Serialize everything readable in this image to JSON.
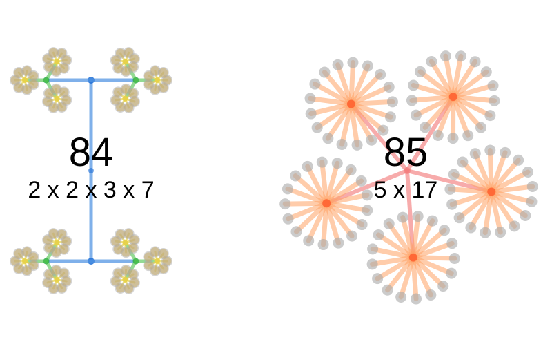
{
  "diagrams": [
    {
      "number": "84",
      "factorization": "2 x 2 x 3 x 7",
      "factors": [
        2,
        2,
        3,
        7
      ]
    },
    {
      "number": "85",
      "factorization": "5 x 17",
      "factors": [
        5,
        17
      ]
    }
  ],
  "colors": {
    "background": "#ffffff",
    "level1_edge": "#4a90e2",
    "level1_node": "#1f6fd6",
    "level2_edge": "#4a90e2",
    "level3_edge": "#4cc24c",
    "level3_node": "#2aa84a",
    "level4_edge": "#e8d24a",
    "leaf_84": "#c9ad6a",
    "leaf_84_halo": "#a9a9a9",
    "level1_edge_85": "#f47f7f",
    "level2_edge_85": "#ffa366",
    "hub_85": "#ff5a2a",
    "leaf_85": "#a9a9a9"
  }
}
